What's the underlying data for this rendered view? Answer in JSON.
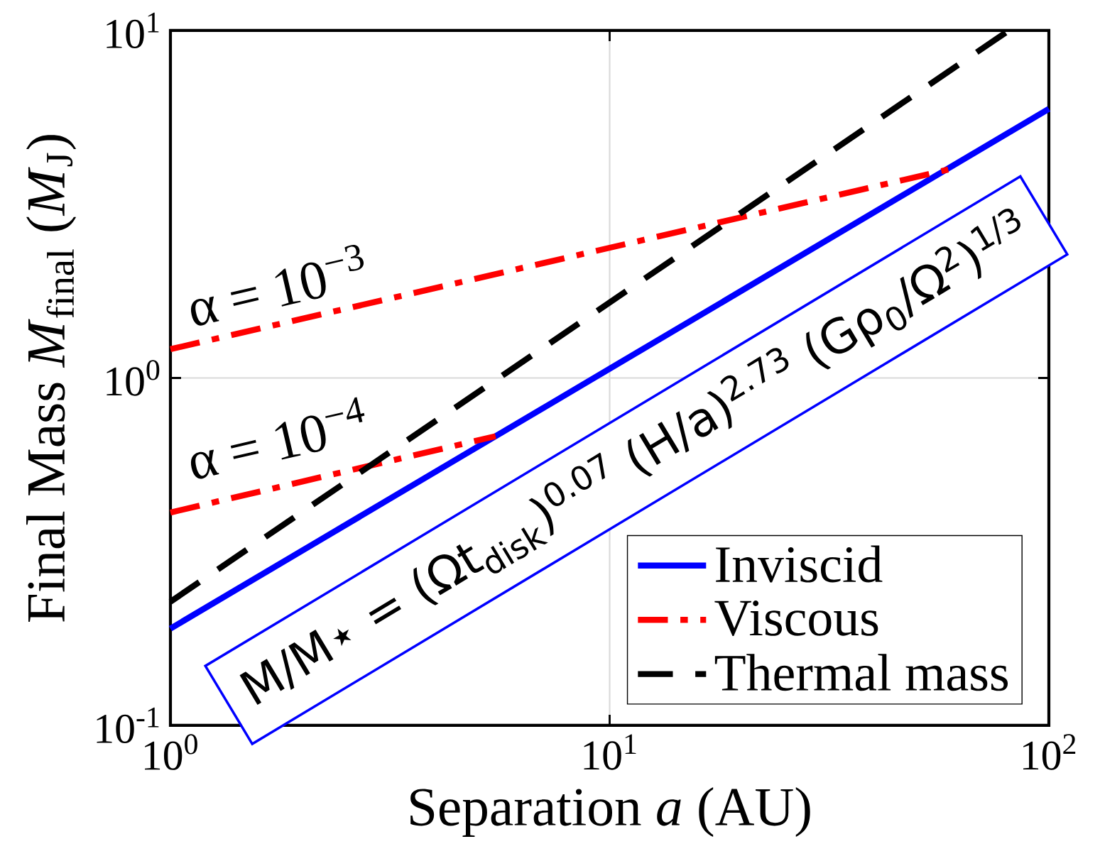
{
  "chart_data": {
    "type": "line",
    "xlabel": "Separation *a* (AU)",
    "ylabel": "Final Mass *M*$_{final}$ (*M*$_{J}$)",
    "xlim": [
      1,
      100
    ],
    "ylim": [
      0.1,
      10
    ],
    "log": "xy",
    "grid": true,
    "legend": "bottom right",
    "xticks": [
      {
        "value": 1,
        "label": "10$^{0}$"
      },
      {
        "value": 10,
        "label": "10$^{1}$"
      },
      {
        "value": 100,
        "label": "10$^{2}$"
      }
    ],
    "yticks": [
      {
        "value": 0.1,
        "label": "10$^{-1}$"
      },
      {
        "value": 1,
        "label": "10$^{0}$"
      },
      {
        "value": 10,
        "label": "10$^{1}$"
      }
    ],
    "series": [
      {
        "name": "Inviscid",
        "color": "#0000ff",
        "line_style": "solid",
        "x": [
          1,
          100
        ],
        "values": [
          0.19,
          5.95
        ]
      },
      {
        "name": "Viscous",
        "color": "#ff0000",
        "line_style": "dashdot",
        "x": [
          1,
          59
        ],
        "values": [
          1.21,
          3.98
        ]
      },
      {
        "color": "#ff0000",
        "line_style": "dashdot",
        "x": [
          1,
          5.5
        ],
        "values": [
          0.41,
          0.68
        ]
      },
      {
        "name": "Thermal mass",
        "color": "#000000",
        "line_style": "dashed",
        "x": [
          1,
          81
        ],
        "values": [
          0.227,
          10
        ]
      }
    ],
    "annotations": [
      "α = 10$^{−3}$",
      "α = 10$^{−4}$",
      "M/M⋆ = (Ωt$_{disk}$)$^{0.07}$ (H/a)$^{2.73}$ (Gρ$_{0}$/Ω$^{2}$)$^{1/3}$"
    ]
  }
}
